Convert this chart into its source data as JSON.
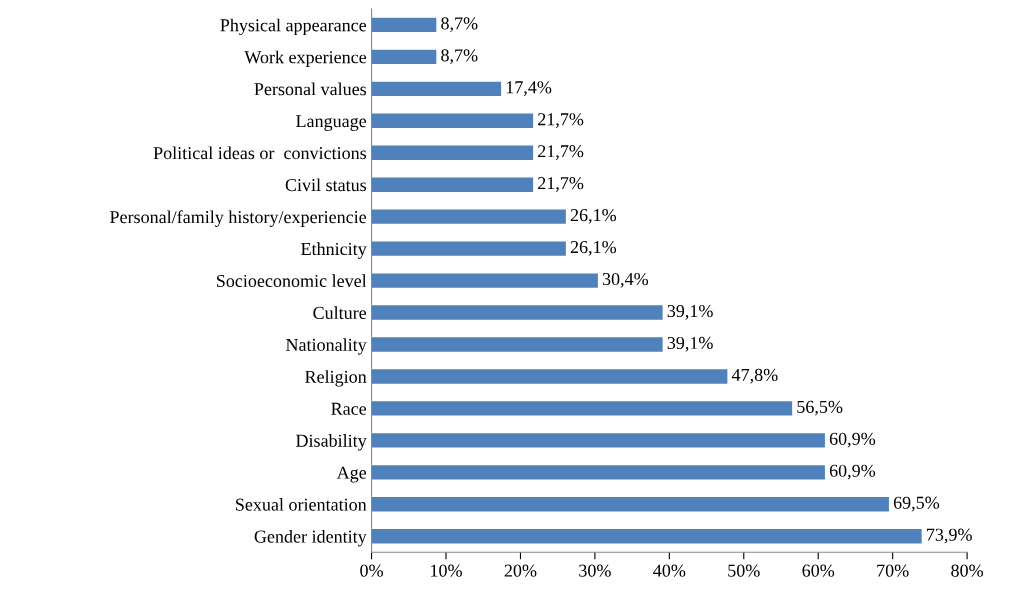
{
  "chart_data": {
    "type": "bar",
    "orientation": "horizontal",
    "categories": [
      "Physical appearance",
      "Work experience",
      "Personal values",
      "Language",
      "Political ideas or  convictions",
      "Civil status",
      "Personal/family history/experiencie",
      "Ethnicity",
      "Socioeconomic level",
      "Culture",
      "Nationality",
      "Religion",
      "Race",
      "Disability",
      "Age",
      "Sexual orientation",
      "Gender identity"
    ],
    "values": [
      8.7,
      8.7,
      17.4,
      21.7,
      21.7,
      21.7,
      26.1,
      26.1,
      30.4,
      39.1,
      39.1,
      47.8,
      56.5,
      60.9,
      60.9,
      69.5,
      73.9
    ],
    "value_labels": [
      "8,7%",
      "8,7%",
      "17,4%",
      "21,7%",
      "21,7%",
      "21,7%",
      "26,1%",
      "26,1%",
      "30,4%",
      "39,1%",
      "39,1%",
      "47,8%",
      "56,5%",
      "60,9%",
      "60,9%",
      "69,5%",
      "73,9%"
    ],
    "color": "#4f81bd",
    "xlim": [
      0,
      80
    ],
    "xticks": [
      {
        "value": 0,
        "label": "0%"
      },
      {
        "value": 10,
        "label": "10%"
      },
      {
        "value": 20,
        "label": "20%"
      },
      {
        "value": 30,
        "label": "30%"
      },
      {
        "value": 40,
        "label": "40%"
      },
      {
        "value": 50,
        "label": "50%"
      },
      {
        "value": 60,
        "label": "60%"
      },
      {
        "value": 70,
        "label": "70%"
      },
      {
        "value": 80,
        "label": "80%"
      }
    ],
    "grid": false
  }
}
